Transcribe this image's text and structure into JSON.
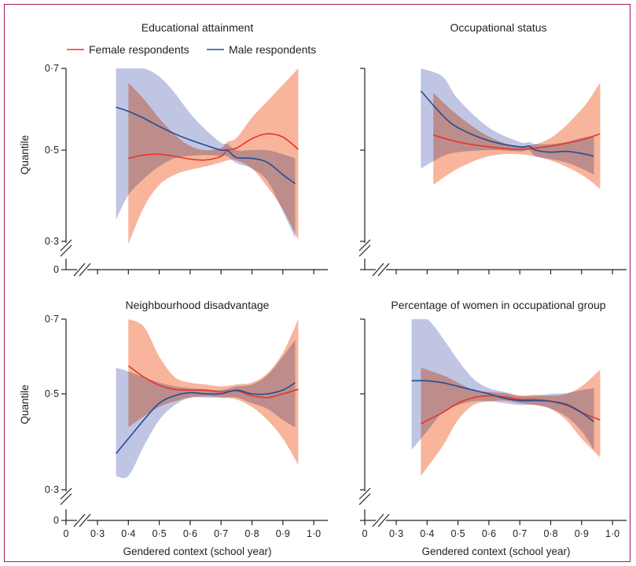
{
  "chart_data": [
    {
      "type": "line",
      "title": "Educational attainment",
      "xlabel": "",
      "ylabel": "Quantile",
      "ylim": [
        0.3,
        0.7
      ],
      "xlim": [
        0.3,
        1.0
      ],
      "yticks": [
        "0·7",
        "0·5",
        "0·3"
      ],
      "y_break": true,
      "series": [
        {
          "name": "Female respondents",
          "color": "#e8332a",
          "band_color": "#f7a88a",
          "x": [
            0.4,
            0.45,
            0.5,
            0.55,
            0.6,
            0.65,
            0.7,
            0.72,
            0.75,
            0.8,
            0.85,
            0.9,
            0.95
          ],
          "y": [
            0.48,
            0.488,
            0.49,
            0.485,
            0.478,
            0.476,
            0.485,
            0.5,
            0.505,
            0.528,
            0.54,
            0.532,
            0.502
          ],
          "lower": [
            0.27,
            0.36,
            0.415,
            0.44,
            0.452,
            0.46,
            0.47,
            0.475,
            0.475,
            0.455,
            0.41,
            0.355,
            0.28
          ],
          "upper": [
            0.665,
            0.625,
            0.578,
            0.538,
            0.51,
            0.5,
            0.505,
            0.52,
            0.53,
            0.58,
            0.62,
            0.66,
            0.7
          ]
        },
        {
          "name": "Male respondents",
          "color": "#1f4e96",
          "band_color": "#a7acd9",
          "x": [
            0.36,
            0.4,
            0.45,
            0.5,
            0.55,
            0.6,
            0.65,
            0.7,
            0.72,
            0.75,
            0.8,
            0.85,
            0.9,
            0.94
          ],
          "y": [
            0.605,
            0.595,
            0.578,
            0.558,
            0.54,
            0.525,
            0.512,
            0.5,
            0.5,
            0.482,
            0.48,
            0.47,
            0.44,
            0.418
          ],
          "lower": [
            0.33,
            0.39,
            0.43,
            0.46,
            0.48,
            0.486,
            0.488,
            0.486,
            0.485,
            0.468,
            0.455,
            0.425,
            0.35,
            0.285
          ],
          "upper": [
            0.7,
            0.7,
            0.7,
            0.68,
            0.64,
            0.59,
            0.55,
            0.518,
            0.515,
            0.5,
            0.5,
            0.5,
            0.49,
            0.48
          ]
        }
      ]
    },
    {
      "type": "line",
      "title": "Occupational status",
      "xlabel": "",
      "ylabel": "",
      "ylim": [
        0.3,
        0.7
      ],
      "xlim": [
        0.3,
        1.0
      ],
      "yticks": [
        "",
        "",
        ""
      ],
      "y_break": true,
      "series": [
        {
          "name": "Female respondents",
          "color": "#e8332a",
          "band_color": "#f7a88a",
          "x": [
            0.42,
            0.5,
            0.6,
            0.7,
            0.8,
            0.9,
            0.96
          ],
          "y": [
            0.537,
            0.52,
            0.508,
            0.502,
            0.51,
            0.525,
            0.54
          ],
          "lower": [
            0.415,
            0.455,
            0.485,
            0.49,
            0.475,
            0.44,
            0.405
          ],
          "upper": [
            0.64,
            0.585,
            0.533,
            0.51,
            0.53,
            0.6,
            0.665
          ]
        },
        {
          "name": "Male respondents",
          "color": "#1f4e96",
          "band_color": "#a7acd9",
          "x": [
            0.38,
            0.45,
            0.5,
            0.6,
            0.7,
            0.73,
            0.75,
            0.8,
            0.85,
            0.9,
            0.94
          ],
          "y": [
            0.645,
            0.585,
            0.555,
            0.523,
            0.508,
            0.51,
            0.5,
            0.495,
            0.497,
            0.492,
            0.485
          ],
          "lower": [
            0.455,
            0.485,
            0.495,
            0.5,
            0.497,
            0.5,
            0.485,
            0.478,
            0.47,
            0.455,
            0.44
          ],
          "upper": [
            0.7,
            0.68,
            0.625,
            0.555,
            0.52,
            0.52,
            0.515,
            0.515,
            0.52,
            0.53,
            0.535
          ]
        }
      ]
    },
    {
      "type": "line",
      "title": "Neighbourhood disadvantage",
      "xlabel": "Gendered context (school year)",
      "ylabel": "Quantile",
      "ylim": [
        0.3,
        0.7
      ],
      "xlim": [
        0.3,
        1.0
      ],
      "yticks": [
        "0·7",
        "0·5",
        "0·3"
      ],
      "y_break": true,
      "series": [
        {
          "name": "Female respondents",
          "color": "#e8332a",
          "band_color": "#f7a88a",
          "x": [
            0.4,
            0.45,
            0.5,
            0.55,
            0.6,
            0.65,
            0.7,
            0.75,
            0.8,
            0.85,
            0.9,
            0.95
          ],
          "y": [
            0.575,
            0.545,
            0.523,
            0.512,
            0.51,
            0.51,
            0.505,
            0.508,
            0.495,
            0.49,
            0.5,
            0.512
          ],
          "lower": [
            0.41,
            0.44,
            0.465,
            0.48,
            0.49,
            0.493,
            0.49,
            0.485,
            0.465,
            0.43,
            0.38,
            0.31
          ],
          "upper": [
            0.7,
            0.68,
            0.6,
            0.545,
            0.53,
            0.525,
            0.52,
            0.525,
            0.53,
            0.555,
            0.61,
            0.7
          ]
        },
        {
          "name": "Male respondents",
          "color": "#1f4e96",
          "band_color": "#a7acd9",
          "x": [
            0.36,
            0.4,
            0.45,
            0.5,
            0.55,
            0.6,
            0.65,
            0.7,
            0.75,
            0.8,
            0.85,
            0.9,
            0.94
          ],
          "y": [
            0.34,
            0.38,
            0.43,
            0.475,
            0.495,
            0.503,
            0.5,
            0.5,
            0.51,
            0.5,
            0.5,
            0.51,
            0.53
          ],
          "lower": [
            0.28,
            0.28,
            0.36,
            0.43,
            0.47,
            0.49,
            0.49,
            0.49,
            0.49,
            0.475,
            0.46,
            0.43,
            0.41
          ],
          "upper": [
            0.57,
            0.56,
            0.545,
            0.53,
            0.52,
            0.515,
            0.512,
            0.51,
            0.52,
            0.525,
            0.55,
            0.6,
            0.645
          ]
        }
      ]
    },
    {
      "type": "line",
      "title": "Percentage of women in occupational group",
      "xlabel": "Gendered context (school year)",
      "ylabel": "",
      "ylim": [
        0.3,
        0.7
      ],
      "xlim": [
        0.3,
        1.0
      ],
      "yticks": [
        "",
        "",
        ""
      ],
      "y_break": true,
      "series": [
        {
          "name": "Female respondents",
          "color": "#e8332a",
          "band_color": "#f7a88a",
          "x": [
            0.38,
            0.45,
            0.5,
            0.55,
            0.6,
            0.65,
            0.7,
            0.75,
            0.8,
            0.85,
            0.9,
            0.96
          ],
          "y": [
            0.42,
            0.45,
            0.475,
            0.49,
            0.495,
            0.492,
            0.485,
            0.485,
            0.48,
            0.47,
            0.45,
            0.43
          ],
          "lower": [
            0.28,
            0.36,
            0.43,
            0.47,
            0.48,
            0.482,
            0.475,
            0.47,
            0.46,
            0.43,
            0.38,
            0.33
          ],
          "upper": [
            0.57,
            0.55,
            0.53,
            0.51,
            0.505,
            0.502,
            0.495,
            0.497,
            0.495,
            0.5,
            0.52,
            0.565
          ]
        },
        {
          "name": "Male respondents",
          "color": "#1f4e96",
          "band_color": "#a7acd9",
          "x": [
            0.35,
            0.4,
            0.45,
            0.5,
            0.55,
            0.6,
            0.65,
            0.7,
            0.75,
            0.8,
            0.85,
            0.9,
            0.94
          ],
          "y": [
            0.535,
            0.535,
            0.53,
            0.52,
            0.51,
            0.5,
            0.488,
            0.482,
            0.482,
            0.48,
            0.472,
            0.45,
            0.425
          ],
          "lower": [
            0.35,
            0.4,
            0.45,
            0.47,
            0.48,
            0.48,
            0.475,
            0.47,
            0.47,
            0.46,
            0.44,
            0.4,
            0.35
          ],
          "upper": [
            0.7,
            0.7,
            0.65,
            0.59,
            0.54,
            0.515,
            0.505,
            0.495,
            0.495,
            0.5,
            0.502,
            0.51,
            0.515
          ]
        }
      ]
    }
  ],
  "x_ticks": [
    "0",
    "0·3",
    "0·4",
    "0·5",
    "0·6",
    "0·7",
    "0·8",
    "0·9",
    "1·0"
  ],
  "x_tick_values": [
    0.3,
    0.4,
    0.5,
    0.6,
    0.7,
    0.8,
    0.9,
    1.0
  ],
  "y_zero_label": "0",
  "legend": {
    "position": "top-left",
    "items": [
      {
        "label": "Female respondents",
        "color": "#e8332a"
      },
      {
        "label": "Male respondents",
        "color": "#1f4e96"
      }
    ]
  },
  "colors": {
    "frame": "#a6175a",
    "female_line": "#e8332a",
    "female_band": "#f7a88a",
    "male_line": "#1f4e96",
    "male_band": "#a7acd9"
  }
}
